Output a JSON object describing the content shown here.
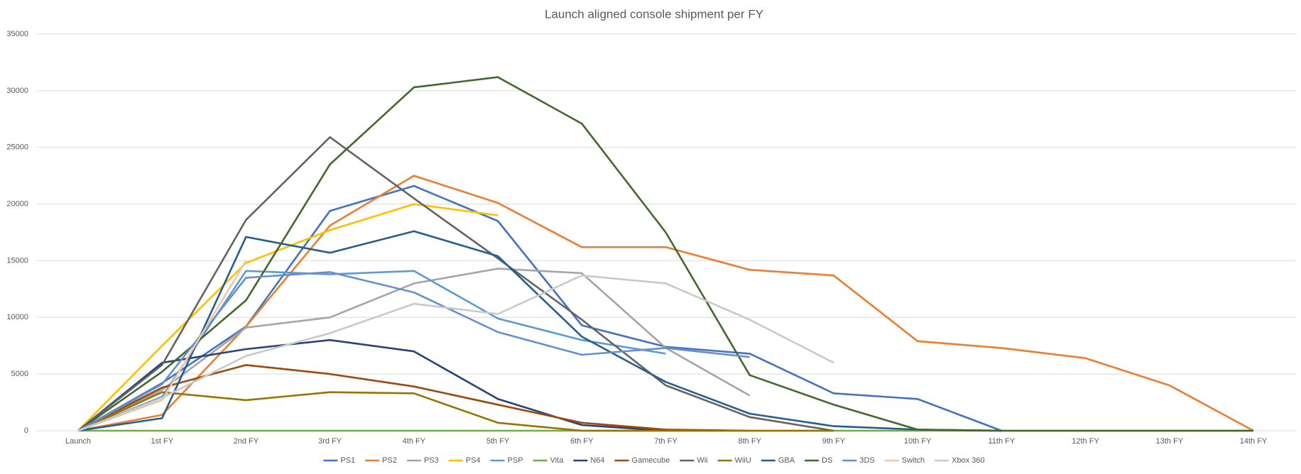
{
  "chart_data": {
    "type": "line",
    "title": "Launch aligned console shipment per FY",
    "categories": [
      "Launch",
      "1st FY",
      "2nd FY",
      "3rd FY",
      "4th FY",
      "5th FY",
      "6th FY",
      "7th FY",
      "8th FY",
      "9th FY",
      "10th FY",
      "11th FY",
      "12th FY",
      "13th FY",
      "14th FY"
    ],
    "ylim": [
      0,
      35000
    ],
    "yticks": [
      0,
      5000,
      10000,
      15000,
      20000,
      25000,
      30000,
      35000
    ],
    "grid": true,
    "legend": "bottom",
    "series": [
      {
        "name": "PS1",
        "color": "#4472c4",
        "values": [
          0,
          4200,
          9200,
          19400,
          21600,
          18500,
          9300,
          7400,
          6800,
          3300,
          2800,
          0,
          null,
          null,
          null
        ]
      },
      {
        "name": "PS2",
        "color": "#ed7d31",
        "values": [
          0,
          1400,
          9200,
          18100,
          22500,
          20100,
          16200,
          16200,
          14200,
          13700,
          7900,
          7300,
          6400,
          4000,
          0
        ]
      },
      {
        "name": "PS3",
        "color": "#a5a5a5",
        "values": [
          0,
          3600,
          9100,
          10000,
          13000,
          14300,
          13900,
          7300,
          3100,
          null,
          null,
          null,
          null,
          null,
          null
        ]
      },
      {
        "name": "PS4",
        "color": "#ffc000",
        "values": [
          0,
          7500,
          14800,
          17700,
          20000,
          19000,
          null,
          null,
          null,
          null,
          null,
          null,
          null,
          null,
          null
        ]
      },
      {
        "name": "PSP",
        "color": "#5b9bd5",
        "values": [
          0,
          3000,
          14100,
          13800,
          14100,
          9900,
          8000,
          6800,
          null,
          null,
          null,
          null,
          null,
          null,
          null
        ]
      },
      {
        "name": "Vita",
        "color": "#70ad47",
        "values": [
          0,
          0,
          0,
          0,
          0,
          0,
          0,
          0,
          0,
          0,
          0,
          0,
          0,
          0,
          0
        ]
      },
      {
        "name": "N64",
        "color": "#264478",
        "values": [
          0,
          6000,
          7200,
          8000,
          7000,
          2800,
          500,
          0,
          null,
          null,
          null,
          null,
          null,
          null,
          null
        ]
      },
      {
        "name": "Gamecube",
        "color": "#9e480e",
        "values": [
          0,
          3800,
          5800,
          5000,
          3900,
          2300,
          700,
          100,
          0,
          null,
          null,
          null,
          null,
          null,
          null
        ]
      },
      {
        "name": "Wii",
        "color": "#636363",
        "values": [
          0,
          5800,
          18600,
          25900,
          20500,
          15200,
          9800,
          4000,
          1200,
          0,
          null,
          null,
          null,
          null,
          null
        ]
      },
      {
        "name": "WiiU",
        "color": "#997300",
        "values": [
          0,
          3400,
          2700,
          3400,
          3300,
          700,
          0,
          0,
          0,
          0,
          null,
          null,
          null,
          null,
          null
        ]
      },
      {
        "name": "GBA",
        "color": "#255e91",
        "values": [
          0,
          1100,
          17100,
          15700,
          17600,
          15400,
          8300,
          4300,
          1500,
          400,
          100,
          0,
          null,
          null,
          null
        ]
      },
      {
        "name": "DS",
        "color": "#43682b",
        "values": [
          0,
          5200,
          11500,
          23500,
          30300,
          31200,
          27100,
          17500,
          4900,
          2300,
          100,
          0,
          0,
          0,
          0
        ]
      },
      {
        "name": "3DS",
        "color": "#698ed0",
        "values": [
          0,
          4100,
          13500,
          14000,
          12200,
          8700,
          6700,
          7300,
          6500,
          null,
          null,
          null,
          null,
          null,
          null
        ]
      },
      {
        "name": "Switch",
        "color": "#f1c6a8",
        "values": [
          0,
          2700,
          15000,
          null,
          null,
          null,
          null,
          null,
          null,
          null,
          null,
          null,
          null,
          null,
          null
        ]
      },
      {
        "name": "Xbox 360",
        "color": "#c9c9c9",
        "values": [
          0,
          2900,
          6600,
          8600,
          11200,
          10300,
          13700,
          13000,
          9800,
          6000,
          null,
          null,
          null,
          null,
          null
        ]
      }
    ]
  }
}
